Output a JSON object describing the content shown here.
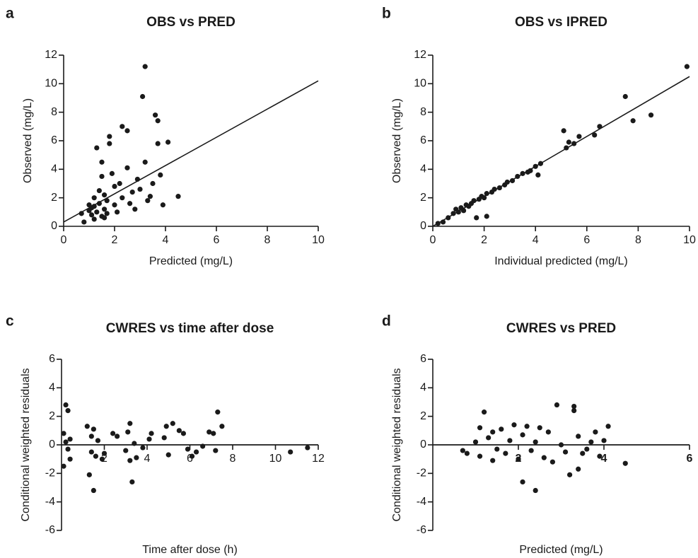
{
  "chart_data": [
    {
      "type": "scatter",
      "label": "a",
      "title": "OBS vs PRED",
      "x_label": "Predicted (mg/L)",
      "y_label": "Observed (mg/L)",
      "color": "#1a1a1a",
      "xlim": [
        0,
        10
      ],
      "ylim": [
        0,
        12
      ],
      "xticks": [
        0,
        2,
        4,
        6,
        8,
        10
      ],
      "yticks": [
        0,
        2,
        4,
        6,
        8,
        10,
        12
      ],
      "x": [
        0.7,
        0.8,
        1.0,
        1.1,
        1.1,
        1.2,
        1.2,
        1.3,
        1.3,
        1.4,
        1.4,
        1.5,
        1.5,
        1.5,
        1.6,
        1.6,
        1.7,
        1.7,
        1.8,
        1.8,
        1.9,
        2.0,
        2.0,
        2.1,
        2.2,
        2.3,
        2.3,
        2.5,
        2.5,
        2.6,
        2.7,
        2.8,
        2.9,
        3.0,
        3.1,
        3.2,
        3.2,
        3.3,
        3.4,
        3.5,
        3.6,
        3.7,
        3.7,
        3.8,
        3.9,
        4.1,
        4.5,
        1.0,
        1.2,
        1.6
      ],
      "values": [
        0.9,
        0.3,
        1.5,
        0.8,
        1.3,
        2.0,
        0.5,
        5.5,
        1.0,
        1.6,
        2.5,
        0.7,
        4.5,
        3.5,
        1.2,
        2.2,
        1.8,
        0.9,
        6.3,
        5.8,
        3.7,
        1.5,
        2.8,
        1.0,
        3.0,
        7.0,
        2.0,
        6.7,
        4.1,
        1.6,
        2.4,
        1.2,
        3.3,
        2.6,
        9.1,
        11.2,
        4.5,
        1.8,
        2.1,
        3.0,
        7.8,
        7.4,
        5.8,
        3.6,
        1.5,
        5.9,
        2.1,
        1.1,
        1.4,
        0.6
      ],
      "line": {
        "x": [
          0,
          10
        ],
        "values": [
          0.3,
          10.2
        ]
      }
    },
    {
      "type": "scatter",
      "label": "b",
      "title": "OBS vs IPRED",
      "x_label": "Individual predicted (mg/L)",
      "y_label": "Observed (mg/L)",
      "color": "#1a1a1a",
      "xlim": [
        0,
        10
      ],
      "ylim": [
        0,
        12
      ],
      "xticks": [
        0,
        2,
        4,
        6,
        8,
        10
      ],
      "yticks": [
        0,
        2,
        4,
        6,
        8,
        10,
        12
      ],
      "x": [
        0.2,
        0.4,
        0.6,
        0.8,
        0.9,
        1.0,
        1.1,
        1.2,
        1.3,
        1.4,
        1.5,
        1.6,
        1.7,
        1.8,
        1.9,
        2.0,
        2.1,
        2.1,
        2.3,
        2.4,
        2.6,
        2.8,
        2.9,
        3.1,
        3.3,
        3.5,
        3.7,
        3.8,
        4.0,
        4.1,
        4.2,
        5.1,
        5.2,
        5.3,
        5.5,
        5.7,
        6.3,
        6.5,
        7.5,
        7.8,
        8.5,
        9.9
      ],
      "values": [
        0.2,
        0.3,
        0.6,
        0.9,
        1.2,
        1.0,
        1.3,
        1.1,
        1.5,
        1.4,
        1.6,
        1.8,
        0.6,
        1.9,
        2.1,
        2.0,
        0.7,
        2.3,
        2.4,
        2.6,
        2.7,
        2.9,
        3.1,
        3.2,
        3.5,
        3.7,
        3.8,
        3.9,
        4.2,
        3.6,
        4.4,
        6.7,
        5.5,
        5.9,
        5.8,
        6.3,
        6.4,
        7.0,
        9.1,
        7.4,
        7.8,
        11.2
      ],
      "line": {
        "x": [
          0,
          10
        ],
        "values": [
          0,
          10.5
        ]
      }
    },
    {
      "type": "scatter",
      "label": "c",
      "title": "CWRES vs time after dose",
      "x_label": "Time after dose (h)",
      "y_label": "Conditional weighted residuals",
      "color": "#1a1a1a",
      "xlim": [
        0,
        12
      ],
      "ylim": [
        -6,
        6
      ],
      "xticks": [
        2,
        4,
        6,
        8,
        10,
        12
      ],
      "yticks": [
        -6,
        -4,
        -2,
        0,
        2,
        4,
        6
      ],
      "x": [
        0.1,
        0.1,
        0.2,
        0.3,
        0.3,
        0.2,
        0.4,
        0.4,
        1.2,
        1.3,
        1.4,
        1.4,
        1.5,
        1.5,
        1.6,
        1.7,
        1.9,
        2.0,
        2.4,
        2.6,
        3.0,
        3.1,
        3.2,
        3.2,
        3.3,
        3.4,
        3.5,
        3.8,
        4.1,
        4.2,
        4.8,
        4.9,
        5.0,
        5.2,
        5.5,
        5.7,
        5.9,
        6.1,
        6.3,
        6.6,
        6.9,
        7.1,
        7.2,
        7.3,
        7.5,
        10.7,
        11.5
      ],
      "values": [
        -1.5,
        0.8,
        2.8,
        2.4,
        -0.3,
        0.2,
        -1.0,
        0.4,
        1.3,
        -2.1,
        0.6,
        -0.5,
        1.1,
        -3.2,
        -0.8,
        0.3,
        -1.0,
        -0.6,
        0.8,
        0.6,
        -0.4,
        0.9,
        1.5,
        -1.1,
        -2.6,
        0.1,
        -0.9,
        -0.2,
        0.4,
        0.8,
        0.5,
        1.3,
        -0.7,
        1.5,
        1.0,
        0.8,
        -0.3,
        -0.8,
        -0.5,
        -0.1,
        0.9,
        0.8,
        -0.4,
        2.3,
        1.3,
        -0.5,
        -0.2
      ],
      "line": {
        "x": [
          0,
          12
        ],
        "values": [
          0,
          0
        ]
      }
    },
    {
      "type": "scatter",
      "label": "d",
      "title": "CWRES vs PRED",
      "x_label": "Predicted (mg/L)",
      "y_label": "Conditional weighted residuals",
      "color": "#1a1a1a",
      "xtick_bold": true,
      "xlim": [
        0,
        6
      ],
      "ylim": [
        -6,
        6
      ],
      "xticks": [
        2,
        4,
        6
      ],
      "yticks": [
        -6,
        -4,
        -2,
        0,
        2,
        4,
        6
      ],
      "x": [
        0.7,
        0.8,
        1.0,
        1.1,
        1.1,
        1.2,
        1.3,
        1.4,
        1.4,
        1.5,
        1.6,
        1.7,
        1.8,
        1.9,
        2.0,
        2.1,
        2.1,
        2.2,
        2.3,
        2.4,
        2.4,
        2.5,
        2.6,
        2.7,
        2.8,
        2.9,
        3.0,
        3.1,
        3.2,
        3.3,
        3.3,
        3.4,
        3.4,
        3.5,
        3.6,
        3.7,
        3.8,
        3.9,
        4.0,
        4.1,
        4.5
      ],
      "values": [
        -0.4,
        -0.6,
        0.2,
        1.2,
        -0.8,
        2.3,
        0.5,
        -1.1,
        0.9,
        -0.3,
        1.1,
        -0.6,
        0.3,
        1.4,
        -1.0,
        -2.6,
        0.7,
        1.3,
        -0.4,
        -3.2,
        0.2,
        1.2,
        -0.9,
        0.9,
        -1.2,
        2.8,
        0.0,
        -0.5,
        -2.1,
        2.7,
        2.4,
        0.6,
        -1.7,
        -0.6,
        -0.3,
        0.2,
        0.9,
        -0.8,
        0.3,
        1.3,
        -1.3
      ],
      "line": {
        "x": [
          0,
          6
        ],
        "values": [
          0,
          0
        ]
      }
    }
  ]
}
